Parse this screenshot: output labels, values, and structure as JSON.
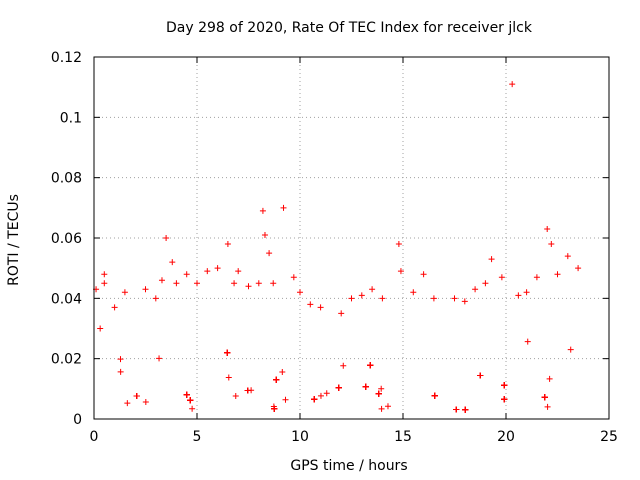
{
  "chart_data": {
    "type": "scatter",
    "title": "Day 298 of 2020, Rate Of TEC Index for receiver jlck",
    "xlabel": "GPS time / hours",
    "ylabel": "ROTI / TECUs",
    "xlim": [
      0,
      25
    ],
    "ylim": [
      0,
      0.12
    ],
    "x_ticks": [
      0,
      5,
      10,
      15,
      20,
      25
    ],
    "x_tick_labels": [
      "0",
      "5",
      "10",
      "15",
      "20",
      "25"
    ],
    "y_ticks": [
      0,
      0.02,
      0.04,
      0.06,
      0.08,
      0.1,
      0.12
    ],
    "y_tick_labels": [
      "0",
      "0.02",
      "0.04",
      "0.06",
      "0.08",
      "0.1",
      "0.12"
    ],
    "grid": true,
    "marker": "+",
    "color": "#ff0000",
    "series": [
      {
        "name": "ROTI",
        "points": [
          [
            0.1,
            0.043
          ],
          [
            0.3,
            0.03
          ],
          [
            0.5,
            0.045
          ],
          [
            0.5,
            0.048
          ],
          [
            1.0,
            0.037
          ],
          [
            1.5,
            0.042
          ],
          [
            2.5,
            0.043
          ],
          [
            3.0,
            0.04
          ],
          [
            3.3,
            0.046
          ],
          [
            3.5,
            0.06
          ],
          [
            3.8,
            0.052
          ],
          [
            4.0,
            0.045
          ],
          [
            4.5,
            0.048
          ],
          [
            5.0,
            0.045
          ],
          [
            5.5,
            0.049
          ],
          [
            6.0,
            0.05
          ],
          [
            6.5,
            0.058
          ],
          [
            6.8,
            0.045
          ],
          [
            7.0,
            0.049
          ],
          [
            7.5,
            0.044
          ],
          [
            8.0,
            0.045
          ],
          [
            8.2,
            0.069
          ],
          [
            8.3,
            0.061
          ],
          [
            8.5,
            0.055
          ],
          [
            8.7,
            0.045
          ],
          [
            9.2,
            0.07
          ],
          [
            9.7,
            0.047
          ],
          [
            10.0,
            0.042
          ],
          [
            10.5,
            0.038
          ],
          [
            11.0,
            0.037
          ],
          [
            12.0,
            0.035
          ],
          [
            12.5,
            0.04
          ],
          [
            13.0,
            0.041
          ],
          [
            13.5,
            0.043
          ],
          [
            14.0,
            0.04
          ],
          [
            14.8,
            0.058
          ],
          [
            14.9,
            0.049
          ],
          [
            15.5,
            0.042
          ],
          [
            16.0,
            0.048
          ],
          [
            16.5,
            0.04
          ],
          [
            17.5,
            0.04
          ],
          [
            18.0,
            0.039
          ],
          [
            18.5,
            0.043
          ],
          [
            19.0,
            0.045
          ],
          [
            19.3,
            0.053
          ],
          [
            19.8,
            0.047
          ],
          [
            20.3,
            0.111
          ],
          [
            20.6,
            0.041
          ],
          [
            21.0,
            0.042
          ],
          [
            21.5,
            0.047
          ],
          [
            22.0,
            0.063
          ],
          [
            22.2,
            0.058
          ],
          [
            22.5,
            0.048
          ],
          [
            23.0,
            0.054
          ],
          [
            23.5,
            0.05
          ]
        ],
        "background_band": {
          "y_min": 0.003,
          "y_max": 0.02,
          "note": "dense cluster of + markers spanning 0 to 24 h"
        }
      }
    ]
  }
}
